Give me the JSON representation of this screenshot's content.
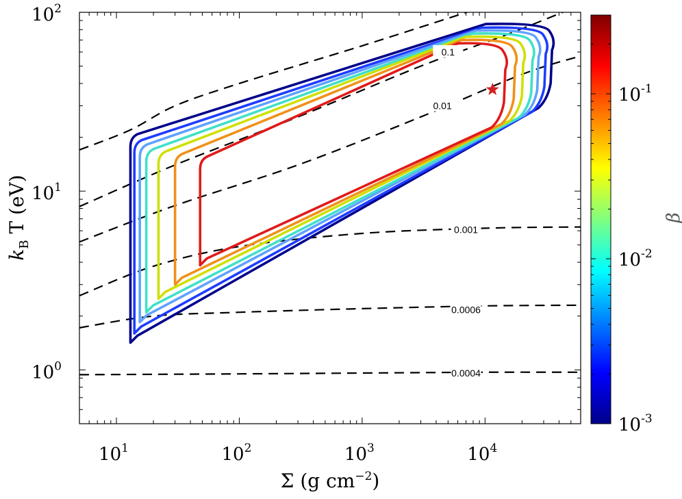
{
  "chart_data": {
    "type": "line",
    "xscale": "log",
    "yscale": "log",
    "xlim": [
      5,
      60000
    ],
    "ylim": [
      0.5,
      100
    ],
    "xlabel": "Σ (g cm",
    "xlabel_exp": "−2",
    "xlabel_close": ")",
    "ylabel_k": "k",
    "ylabel_sub": "B",
    "ylabel_rest": " T (eV)",
    "x_ticks": [
      {
        "value": 10,
        "base": "10",
        "exp": "1"
      },
      {
        "value": 100,
        "base": "10",
        "exp": "2"
      },
      {
        "value": 1000,
        "base": "10",
        "exp": "3"
      },
      {
        "value": 10000,
        "base": "10",
        "exp": "4"
      }
    ],
    "y_ticks": [
      {
        "value": 1,
        "base": "10",
        "exp": "0"
      },
      {
        "value": 10,
        "base": "10",
        "exp": "1"
      },
      {
        "value": 100,
        "base": "10",
        "exp": "2"
      }
    ],
    "dashed_contours": [
      {
        "label": "",
        "label_at": null,
        "points": [
          [
            5,
            17
          ],
          [
            13,
            22
          ],
          [
            30,
            30
          ],
          [
            100,
            40
          ],
          [
            1000,
            65
          ],
          [
            10000,
            108
          ]
        ]
      },
      {
        "label": "0.1",
        "label_at": [
          5000,
          60
        ],
        "points": [
          [
            5,
            8.2
          ],
          [
            30,
            14
          ],
          [
            300,
            26
          ],
          [
            3000,
            50
          ],
          [
            15000,
            75
          ],
          [
            60000,
            110
          ]
        ]
      },
      {
        "label": "0.01",
        "label_at": [
          4500,
          30
        ],
        "points": [
          [
            5,
            5.2
          ],
          [
            30,
            8.3
          ],
          [
            300,
            14
          ],
          [
            3000,
            26
          ],
          [
            20000,
            45
          ],
          [
            60000,
            57
          ]
        ]
      },
      {
        "label": "0.001",
        "label_at": [
          7000,
          6.1
        ],
        "points": [
          [
            5,
            2.6
          ],
          [
            20,
            3.8
          ],
          [
            100,
            4.9
          ],
          [
            1000,
            5.8
          ],
          [
            10000,
            6.2
          ],
          [
            60000,
            6.3
          ]
        ]
      },
      {
        "label": "0.0006",
        "label_at": [
          7000,
          2.17
        ],
        "points": [
          [
            5,
            1.72
          ],
          [
            20,
            2.0
          ],
          [
            100,
            2.1
          ],
          [
            1000,
            2.2
          ],
          [
            10000,
            2.28
          ],
          [
            60000,
            2.3
          ]
        ]
      },
      {
        "label": "0.0004",
        "label_at": [
          7000,
          0.96
        ],
        "points": [
          [
            5,
            0.94
          ],
          [
            100,
            0.95
          ],
          [
            1000,
            0.96
          ],
          [
            10000,
            0.97
          ],
          [
            60000,
            0.97
          ]
        ]
      }
    ],
    "series": [
      {
        "name": "beta=0.001",
        "color": "#00008b",
        "xmin": 13.0,
        "xmax": 36000,
        "ymin": 1.42,
        "ymax": 86,
        "corner": 20
      },
      {
        "name": "beta=0.002",
        "color": "#1e3cff",
        "xmin": 14.0,
        "xmax": 32000,
        "ymin": 1.6,
        "ymax": 82,
        "corner": 18.5
      },
      {
        "name": "beta=0.004",
        "color": "#5fa2ff",
        "xmin": 15.5,
        "xmax": 28000,
        "ymin": 1.85,
        "ymax": 79,
        "corner": 17.5
      },
      {
        "name": "beta=0.006",
        "color": "#3fe0c8",
        "xmin": 17.5,
        "xmax": 25000,
        "ymin": 2.1,
        "ymax": 76,
        "corner": 16.5
      },
      {
        "name": "beta=0.01",
        "color": "#cfe000",
        "xmin": 22.0,
        "xmax": 21000,
        "ymin": 2.5,
        "ymax": 73,
        "corner": 16
      },
      {
        "name": "beta=0.03",
        "color": "#f0901a",
        "xmin": 30.0,
        "xmax": 18000,
        "ymin": 3.0,
        "ymax": 70,
        "corner": 15.5
      },
      {
        "name": "beta=0.1",
        "color": "#e01a1a",
        "xmin": 48.0,
        "xmax": 15000,
        "ymin": 3.85,
        "ymax": 67,
        "corner": 15
      }
    ],
    "marker": {
      "shape": "star",
      "x": 11500,
      "y": 37,
      "color": "#d42020"
    },
    "colorbar": {
      "title": "β",
      "scale": "log",
      "range": [
        0.001,
        0.3
      ],
      "colormap": [
        "#00008b",
        "#0000ff",
        "#0080ff",
        "#00ffff",
        "#80ff80",
        "#ffff00",
        "#ff8000",
        "#ff0000",
        "#800000"
      ],
      "ticks": [
        {
          "value": 0.001,
          "base": "10",
          "exp": "-3"
        },
        {
          "value": 0.01,
          "base": "10",
          "exp": "-2"
        },
        {
          "value": 0.1,
          "base": "10",
          "exp": "-1"
        }
      ]
    }
  }
}
